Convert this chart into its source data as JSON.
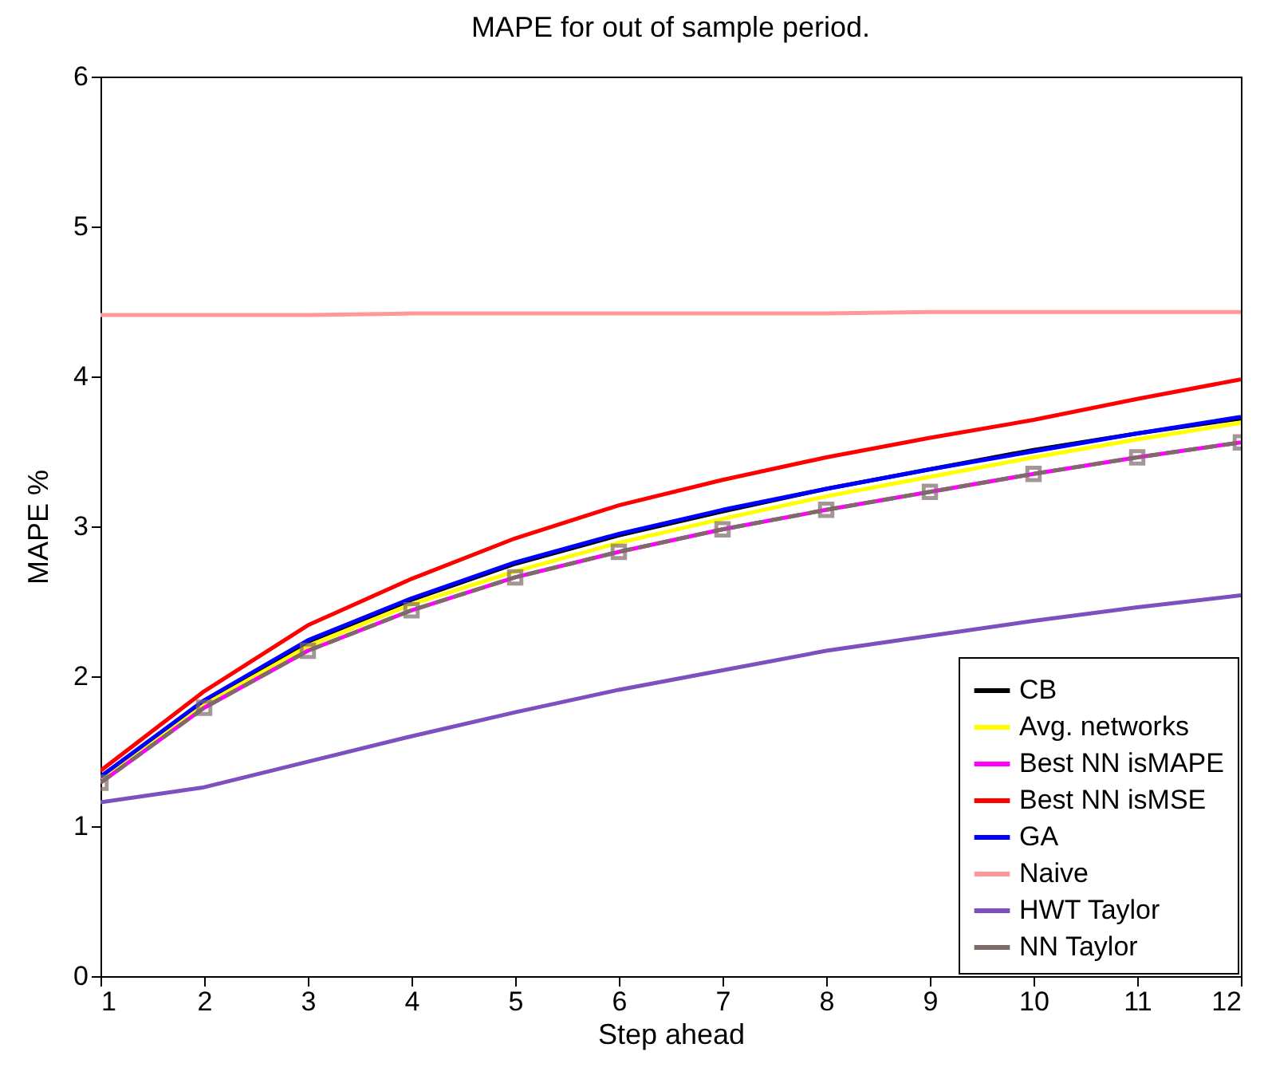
{
  "chart_data": {
    "type": "line",
    "title": "MAPE for out of sample period.",
    "xlabel": "Step ahead",
    "ylabel": "MAPE %",
    "x": [
      1,
      2,
      3,
      4,
      5,
      6,
      7,
      8,
      9,
      10,
      11,
      12
    ],
    "xlim": [
      1,
      12
    ],
    "xticks": [
      1,
      2,
      3,
      4,
      5,
      6,
      7,
      8,
      9,
      10,
      11,
      12
    ],
    "ylim": [
      0,
      6
    ],
    "yticks": [
      0,
      1,
      2,
      3,
      4,
      5,
      6
    ],
    "grid": false,
    "legend": "bottom right",
    "series": [
      {
        "name": "CB",
        "color": "#000000",
        "values": [
          1.33,
          1.83,
          2.23,
          2.51,
          2.75,
          2.94,
          3.1,
          3.25,
          3.38,
          3.51,
          3.62,
          3.72
        ]
      },
      {
        "name": "Avg. networks",
        "color": "#ffff00",
        "values": [
          1.32,
          1.81,
          2.2,
          2.48,
          2.7,
          2.89,
          3.05,
          3.2,
          3.33,
          3.46,
          3.58,
          3.69
        ]
      },
      {
        "name": "Best NN isMAPE",
        "color": "#ff00ff",
        "values": [
          1.29,
          1.79,
          2.17,
          2.44,
          2.66,
          2.83,
          2.98,
          3.11,
          3.23,
          3.35,
          3.46,
          3.56
        ]
      },
      {
        "name": "Best NN isMSE",
        "color": "#ff0000",
        "values": [
          1.37,
          1.9,
          2.34,
          2.65,
          2.92,
          3.14,
          3.31,
          3.46,
          3.59,
          3.71,
          3.85,
          3.98
        ]
      },
      {
        "name": "GA",
        "color": "#0000ff",
        "values": [
          1.33,
          1.84,
          2.24,
          2.52,
          2.76,
          2.95,
          3.11,
          3.25,
          3.38,
          3.5,
          3.62,
          3.73
        ]
      },
      {
        "name": "Naive",
        "color": "#ff9999",
        "values": [
          4.41,
          4.41,
          4.41,
          4.42,
          4.42,
          4.42,
          4.42,
          4.42,
          4.43,
          4.43,
          4.43,
          4.43
        ]
      },
      {
        "name": "HWT Taylor",
        "color": "#7e4fbf",
        "values": [
          1.16,
          1.26,
          1.43,
          1.6,
          1.76,
          1.91,
          2.04,
          2.17,
          2.27,
          2.37,
          2.46,
          2.54
        ]
      },
      {
        "name": "NN Taylor",
        "color": "#7f6a6a",
        "marker": "square",
        "line_style": "dashed",
        "values": [
          1.29,
          1.79,
          2.17,
          2.44,
          2.66,
          2.83,
          2.98,
          3.11,
          3.23,
          3.35,
          3.46,
          3.56
        ]
      }
    ]
  }
}
